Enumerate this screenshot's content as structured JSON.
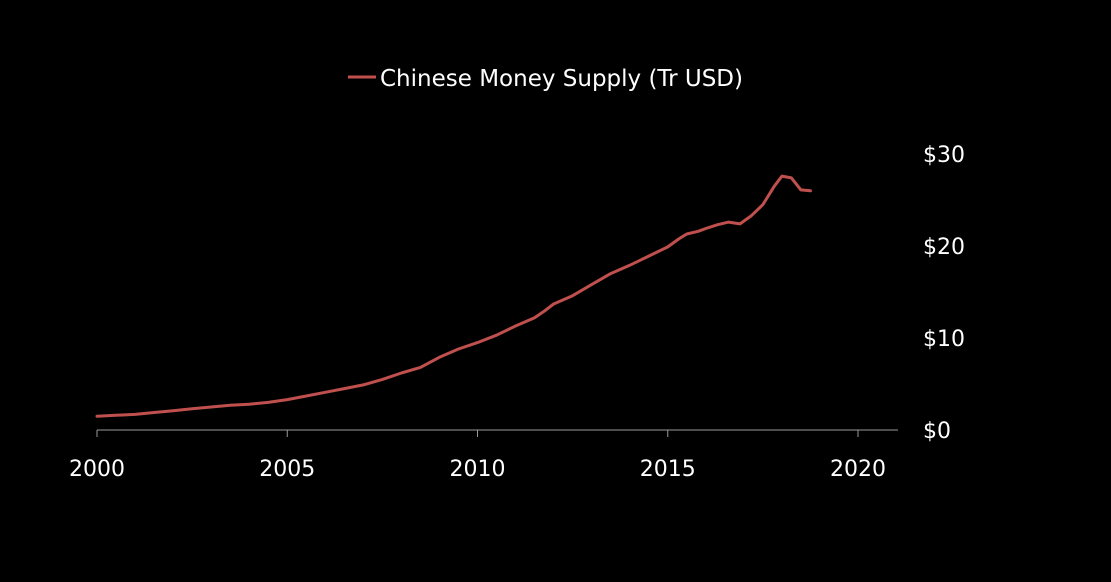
{
  "chart_data": {
    "type": "line",
    "title": "",
    "xlabel": "",
    "ylabel": "",
    "xlim": [
      2000,
      2021
    ],
    "ylim": [
      0,
      30
    ],
    "grid": false,
    "legend_position": "top-center",
    "x_ticks": [
      {
        "value": 2000,
        "label": "2000"
      },
      {
        "value": 2005,
        "label": "2005"
      },
      {
        "value": 2010,
        "label": "2010"
      },
      {
        "value": 2015,
        "label": "2015"
      },
      {
        "value": 2020,
        "label": "2020"
      }
    ],
    "y_ticks": [
      {
        "value": 0,
        "label": "$0"
      },
      {
        "value": 10,
        "label": "$10"
      },
      {
        "value": 20,
        "label": "$20"
      },
      {
        "value": 30,
        "label": "$30"
      }
    ],
    "series": [
      {
        "name": "Chinese Money Supply (Tr USD)",
        "color": "#c0504d",
        "x": [
          2000.0,
          2000.5,
          2001.0,
          2001.5,
          2002.0,
          2002.5,
          2003.0,
          2003.5,
          2004.0,
          2004.5,
          2005.0,
          2005.5,
          2006.0,
          2006.5,
          2007.0,
          2007.5,
          2008.0,
          2008.5,
          2009.0,
          2009.5,
          2010.0,
          2010.5,
          2011.0,
          2011.5,
          2011.75,
          2012.0,
          2012.5,
          2013.0,
          2013.5,
          2014.0,
          2014.5,
          2015.0,
          2015.3,
          2015.5,
          2015.8,
          2016.0,
          2016.3,
          2016.6,
          2016.9,
          2017.2,
          2017.5,
          2017.8,
          2018.0,
          2018.25,
          2018.5,
          2018.75
        ],
        "values": [
          1.5,
          1.6,
          1.7,
          1.9,
          2.1,
          2.3,
          2.5,
          2.7,
          2.8,
          3.0,
          3.3,
          3.7,
          4.1,
          4.5,
          4.9,
          5.5,
          6.2,
          6.8,
          7.9,
          8.8,
          9.5,
          10.3,
          11.3,
          12.2,
          12.9,
          13.7,
          14.6,
          15.8,
          17.0,
          17.9,
          18.9,
          19.9,
          20.8,
          21.3,
          21.6,
          21.9,
          22.3,
          22.6,
          22.4,
          23.3,
          24.5,
          26.5,
          27.6,
          27.4,
          26.1,
          26.0
        ]
      }
    ]
  }
}
